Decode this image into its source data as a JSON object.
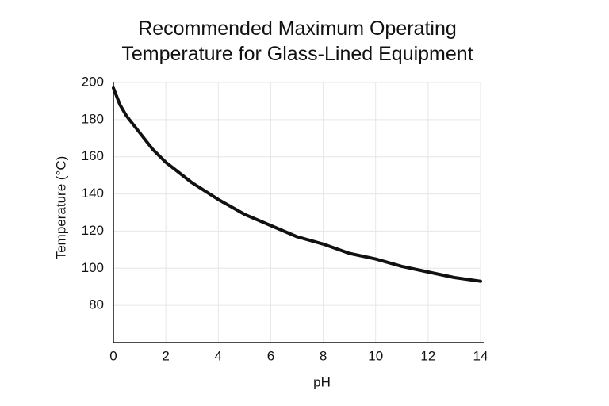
{
  "chart_data": {
    "type": "line",
    "title": "Recommended Maximum Operating Temperature for Glass-Lined Equipment",
    "x_label": "pH",
    "y_label": "Temperature (°C)",
    "x": [
      0,
      0.25,
      0.5,
      1,
      1.5,
      2,
      3,
      4,
      5,
      6,
      7,
      8,
      9,
      10,
      11,
      12,
      13,
      14
    ],
    "series": [
      {
        "color": "#111111",
        "values": [
          197,
          188,
          182,
          173,
          164,
          157,
          146,
          137,
          129,
          123,
          117,
          113,
          108,
          105,
          101,
          98,
          95,
          93
        ]
      }
    ],
    "xlim": [
      0,
      14
    ],
    "xticks": [
      0,
      2,
      4,
      6,
      8,
      10,
      12,
      14
    ],
    "ylim": [
      60,
      200
    ],
    "yticks": [
      80,
      100,
      120,
      140,
      160,
      180,
      200
    ],
    "grid": true
  }
}
